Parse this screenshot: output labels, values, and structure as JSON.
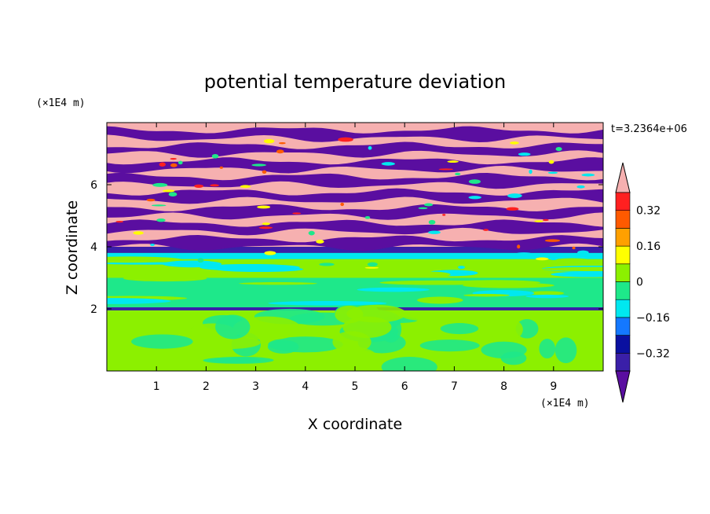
{
  "chart_data": {
    "type": "heatmap",
    "title": "potential temperature deviation",
    "xlabel": "X coordinate",
    "ylabel": "Z coordinate",
    "x_unit": "(×1E4 m)",
    "y_unit": "(×1E4 m)",
    "time_label": "t=3.2364e+06",
    "xlim": [
      0,
      10
    ],
    "ylim": [
      0,
      8
    ],
    "x_ticks": [
      "1",
      "2",
      "3",
      "4",
      "5",
      "6",
      "7",
      "8",
      "9"
    ],
    "y_ticks": [
      "2",
      "4",
      "6"
    ],
    "colorbar": {
      "levels": [
        -0.4,
        -0.32,
        -0.24,
        -0.16,
        -0.08,
        0,
        0.08,
        0.16,
        0.24,
        0.32,
        0.4
      ],
      "labels": [
        "0.32",
        "0.16",
        "0",
        "−0.16",
        "−0.32"
      ],
      "label_values": [
        0.32,
        0.16,
        0,
        -0.16,
        -0.32
      ],
      "colors": [
        "#5a0ea0",
        "#3a1fa8",
        "#0a10a0",
        "#1478ff",
        "#00e8f0",
        "#1ee88a",
        "#8cf000",
        "#ffff00",
        "#ffa000",
        "#ff5a00",
        "#ff2020",
        "#f6b0b0"
      ],
      "extend": "both"
    },
    "bands": [
      {
        "z": [
          7.6,
          8.0
        ],
        "pattern": "stripes"
      },
      {
        "z": [
          4.0,
          7.6
        ],
        "pattern": "stripes"
      },
      {
        "z": [
          3.8,
          4.0
        ],
        "value": -0.36
      },
      {
        "z": [
          3.6,
          3.8
        ],
        "value": -0.12
      },
      {
        "z": [
          3.0,
          3.6
        ],
        "value": 0.02
      },
      {
        "z": [
          2.0,
          3.0
        ],
        "value": -0.02
      },
      {
        "z": [
          1.95,
          2.05
        ],
        "value": -0.34
      },
      {
        "z": [
          0,
          1.95
        ],
        "value": 0.06
      }
    ]
  }
}
